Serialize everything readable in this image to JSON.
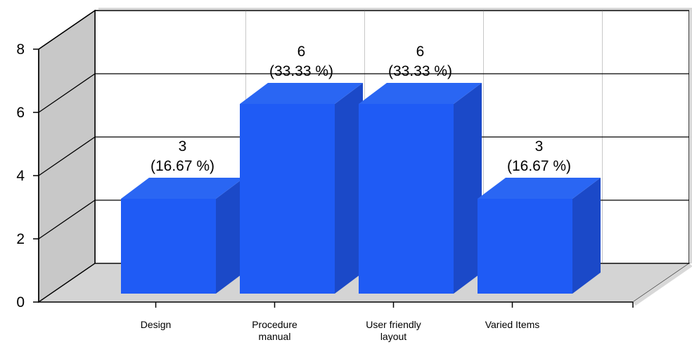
{
  "chart_data": {
    "type": "bar",
    "categories": [
      "Design",
      "Procedure manual",
      "User friendly layout",
      "Varied Items"
    ],
    "category_lines": [
      [
        "Design"
      ],
      [
        "Procedure",
        "manual"
      ],
      [
        "User friendly",
        "layout"
      ],
      [
        "Varied Items"
      ]
    ],
    "values": [
      3,
      6,
      6,
      3
    ],
    "value_labels": [
      "3",
      "6",
      "6",
      "3"
    ],
    "percent_labels": [
      "(16.67 %)",
      "(33.33 %)",
      "(33.33 %)",
      "(16.67 %)"
    ],
    "y_ticks": [
      "0",
      "2",
      "4",
      "6",
      "8"
    ],
    "ylim": [
      0,
      8
    ],
    "title": "",
    "xlabel": "",
    "ylabel": "",
    "grid": true,
    "three_d": true,
    "colors": {
      "bar_front": "#1f5bf5",
      "bar_top": "#2a66f3",
      "bar_side": "#1b49c8",
      "left_wall": "#c8c8c8",
      "floor": "#d4d4d4",
      "grid": "#000000",
      "vertical_grid": "#c8c8c8"
    }
  }
}
